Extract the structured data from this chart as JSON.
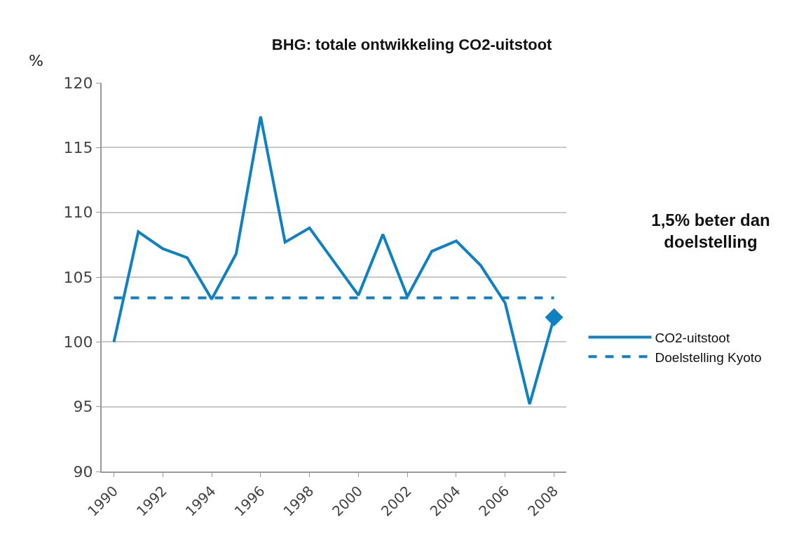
{
  "chart_data": {
    "type": "line",
    "title": "BHG: totale ontwikkeling CO2-uitstoot",
    "ylabel": "%",
    "x": [
      1990,
      1991,
      1992,
      1993,
      1994,
      1995,
      1996,
      1997,
      1998,
      1999,
      2000,
      2001,
      2002,
      2003,
      2004,
      2005,
      2006,
      2007,
      2008
    ],
    "series": [
      {
        "name": "CO2-uitstoot",
        "color": "#0f80c1",
        "line_style": "solid",
        "values": [
          100.0,
          108.5,
          107.2,
          106.5,
          103.3,
          106.8,
          117.4,
          107.7,
          108.8,
          106.2,
          103.6,
          108.3,
          103.5,
          107.0,
          107.8,
          105.9,
          103.0,
          95.2,
          101.9
        ]
      },
      {
        "name": "Doelstelling Kyoto",
        "color": "#0f80c1",
        "line_style": "dashed",
        "values": [
          103.4,
          103.4,
          103.4,
          103.4,
          103.4,
          103.4,
          103.4,
          103.4,
          103.4,
          103.4,
          103.4,
          103.4,
          103.4,
          103.4,
          103.4,
          103.4,
          103.4,
          103.4,
          103.4
        ]
      },
      {
        "type": "scatter",
        "color": "#0f80c1",
        "marker": "diamond",
        "x": [
          2008
        ],
        "values": [
          101.9
        ]
      }
    ],
    "annotations": [
      "1,5% beter dan doelstelling"
    ],
    "xlim": [
      1989.5,
      2008.5
    ],
    "xticks": [
      1990,
      1992,
      1994,
      1996,
      1998,
      2000,
      2002,
      2004,
      2006,
      2008
    ],
    "ylim": [
      90,
      120
    ],
    "yticks": [
      90,
      95,
      100,
      105,
      110,
      115,
      120
    ],
    "grid": "y",
    "legend": "right"
  }
}
